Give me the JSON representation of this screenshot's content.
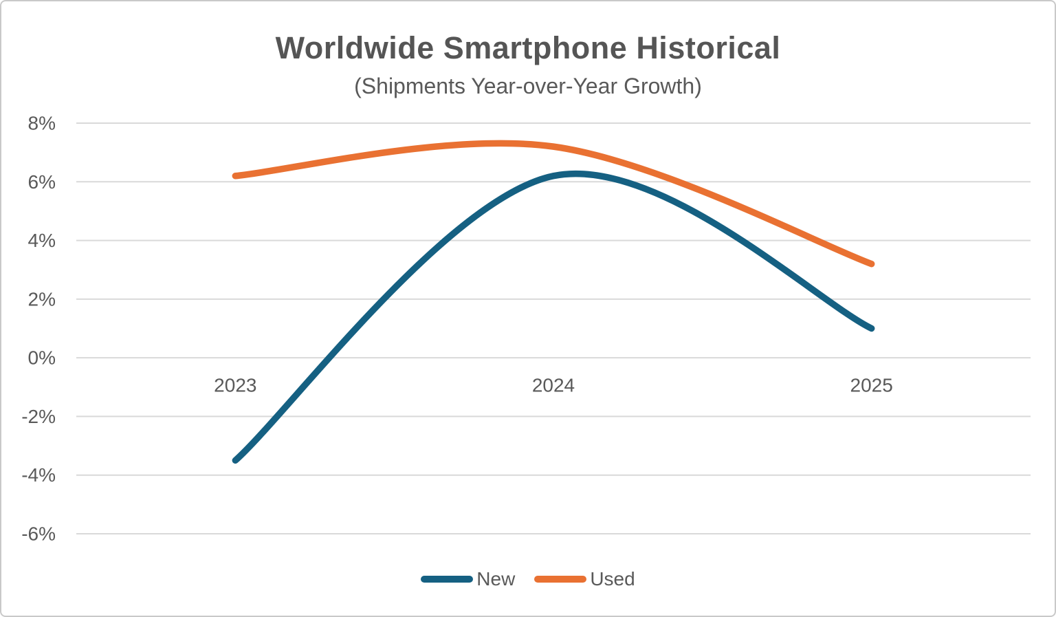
{
  "title": "Worldwide Smartphone Historical",
  "subtitle": "(Shipments Year-over-Year Growth)",
  "colors": {
    "text": "#595959",
    "title_text": "#555555",
    "gridline": "#d9d9d9",
    "background": "#ffffff",
    "border": "#c9c9c9"
  },
  "chart_data": {
    "type": "line",
    "smooth": true,
    "title": "Worldwide Smartphone Historical",
    "subtitle": "(Shipments Year-over-Year Growth)",
    "xlabel": "",
    "ylabel": "",
    "categories": [
      "2023",
      "2024",
      "2025"
    ],
    "series": [
      {
        "name": "New",
        "color": "#156082",
        "values": [
          -3.5,
          6.2,
          1.0
        ]
      },
      {
        "name": "Used",
        "color": "#E97132",
        "values": [
          6.2,
          7.2,
          3.2
        ]
      }
    ],
    "y_axis": {
      "tick_values": [
        8,
        6,
        4,
        2,
        0,
        -2,
        -4,
        -6
      ],
      "tick_labels": [
        "8%",
        "6%",
        "4%",
        "2%",
        "0%",
        "-2%",
        "-4%",
        "-6%"
      ],
      "ylim": [
        -6,
        8
      ],
      "unit": "percent"
    },
    "grid": true,
    "legend_position": "bottom"
  },
  "legend": {
    "items": [
      {
        "label": "New",
        "color": "#156082"
      },
      {
        "label": "Used",
        "color": "#E97132"
      }
    ]
  }
}
